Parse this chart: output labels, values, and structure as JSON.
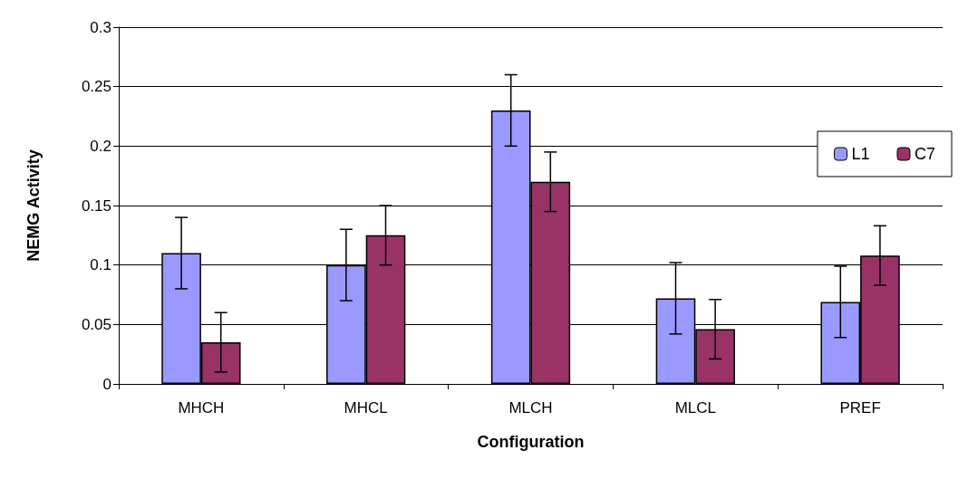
{
  "chart_data": {
    "type": "bar",
    "xlabel": "Configuration",
    "ylabel": "NEMG Activity",
    "categories": [
      "MHCH",
      "MHCL",
      "MLCH",
      "MLCL",
      "PREF"
    ],
    "series": [
      {
        "name": "L1",
        "color": "#9999ff",
        "values": [
          0.11,
          0.1,
          0.23,
          0.072,
          0.069
        ],
        "errors": [
          0.03,
          0.03,
          0.03,
          0.03,
          0.03
        ]
      },
      {
        "name": "C7",
        "color": "#993366",
        "values": [
          0.035,
          0.125,
          0.17,
          0.046,
          0.108
        ],
        "errors": [
          0.025,
          0.025,
          0.025,
          0.025,
          0.025
        ]
      }
    ],
    "ylim": [
      0,
      0.3
    ],
    "yticks": [
      0,
      0.05,
      0.1,
      0.15,
      0.2,
      0.25,
      0.3
    ],
    "grid": "y",
    "legend": "top right"
  }
}
